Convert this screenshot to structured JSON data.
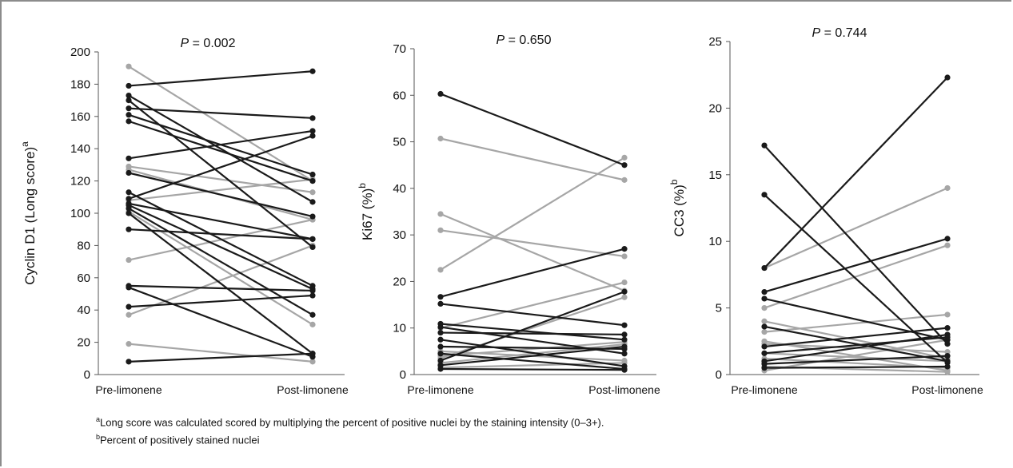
{
  "chart_data": [
    {
      "type": "line",
      "title": "P = 0.002",
      "title_parts": {
        "p": "P",
        "rest": " = 0.002"
      },
      "ylabel": "Cyclin D1 (Long score)",
      "ylabel_sup": "a",
      "categories": [
        "Pre-limonene",
        "Post-limonene"
      ],
      "ylim": [
        0,
        200
      ],
      "yticks": [
        0,
        20,
        40,
        60,
        80,
        100,
        120,
        140,
        160,
        180,
        200
      ],
      "legend": "none",
      "grid": false,
      "colors": {
        "dark": "#1a1a1a",
        "gray": "#a6a6a6"
      },
      "series": [
        {
          "color": "dark",
          "values": [
            179,
            188
          ]
        },
        {
          "color": "dark",
          "values": [
            173,
            107
          ]
        },
        {
          "color": "dark",
          "values": [
            170,
            79
          ]
        },
        {
          "color": "dark",
          "values": [
            165,
            159
          ]
        },
        {
          "color": "dark",
          "values": [
            161,
            124
          ]
        },
        {
          "color": "dark",
          "values": [
            157,
            120
          ]
        },
        {
          "color": "dark",
          "values": [
            134,
            151
          ]
        },
        {
          "color": "dark",
          "values": [
            125,
            98
          ]
        },
        {
          "color": "dark",
          "values": [
            113,
            55
          ]
        },
        {
          "color": "dark",
          "values": [
            109,
            148
          ]
        },
        {
          "color": "dark",
          "values": [
            106,
            84
          ]
        },
        {
          "color": "dark",
          "values": [
            105,
            53
          ]
        },
        {
          "color": "dark",
          "values": [
            103,
            37
          ]
        },
        {
          "color": "dark",
          "values": [
            100,
            13
          ]
        },
        {
          "color": "dark",
          "values": [
            90,
            84
          ]
        },
        {
          "color": "dark",
          "values": [
            55,
            52
          ]
        },
        {
          "color": "dark",
          "values": [
            54,
            11
          ]
        },
        {
          "color": "dark",
          "values": [
            42,
            49
          ]
        },
        {
          "color": "dark",
          "values": [
            8,
            13
          ]
        },
        {
          "color": "gray",
          "values": [
            191,
            120
          ]
        },
        {
          "color": "gray",
          "values": [
            129,
            113
          ]
        },
        {
          "color": "gray",
          "values": [
            127,
            96
          ]
        },
        {
          "color": "gray",
          "values": [
            108,
            121
          ]
        },
        {
          "color": "gray",
          "values": [
            101,
            31
          ]
        },
        {
          "color": "gray",
          "values": [
            71,
            96
          ]
        },
        {
          "color": "gray",
          "values": [
            37,
            80
          ]
        },
        {
          "color": "gray",
          "values": [
            19,
            8
          ]
        }
      ]
    },
    {
      "type": "line",
      "title": "P = 0.650",
      "title_parts": {
        "p": "P",
        "rest": " = 0.650"
      },
      "ylabel": "Ki67 (%)",
      "ylabel_sup": "b",
      "categories": [
        "Pre-limonene",
        "Post-limonene"
      ],
      "ylim": [
        0,
        70
      ],
      "yticks": [
        0,
        10,
        20,
        30,
        40,
        50,
        60,
        70
      ],
      "legend": "none",
      "grid": false,
      "colors": {
        "dark": "#1a1a1a",
        "gray": "#a6a6a6"
      },
      "series": [
        {
          "color": "dark",
          "values": [
            60.3,
            45
          ]
        },
        {
          "color": "dark",
          "values": [
            16.7,
            27
          ]
        },
        {
          "color": "dark",
          "values": [
            15.2,
            10.6
          ]
        },
        {
          "color": "dark",
          "values": [
            10.9,
            7.5
          ]
        },
        {
          "color": "dark",
          "values": [
            10.2,
            4.5
          ]
        },
        {
          "color": "dark",
          "values": [
            9,
            8.6
          ]
        },
        {
          "color": "dark",
          "values": [
            7.5,
            1.8
          ]
        },
        {
          "color": "dark",
          "values": [
            6,
            5.5
          ]
        },
        {
          "color": "dark",
          "values": [
            4.5,
            1.2
          ]
        },
        {
          "color": "dark",
          "values": [
            3,
            17.8
          ]
        },
        {
          "color": "dark",
          "values": [
            2,
            6
          ]
        },
        {
          "color": "dark",
          "values": [
            1.2,
            1
          ]
        },
        {
          "color": "gray",
          "values": [
            50.7,
            41.8
          ]
        },
        {
          "color": "gray",
          "values": [
            34.5,
            18
          ]
        },
        {
          "color": "gray",
          "values": [
            31,
            25.4
          ]
        },
        {
          "color": "gray",
          "values": [
            22.5,
            46.6
          ]
        },
        {
          "color": "gray",
          "values": [
            10,
            19.8
          ]
        },
        {
          "color": "gray",
          "values": [
            5,
            3
          ]
        },
        {
          "color": "gray",
          "values": [
            4,
            7
          ]
        },
        {
          "color": "gray",
          "values": [
            3.5,
            16.6
          ]
        },
        {
          "color": "gray",
          "values": [
            2.5,
            6.5
          ]
        },
        {
          "color": "gray",
          "values": [
            1.5,
            2.5
          ]
        }
      ]
    },
    {
      "type": "line",
      "title": "P = 0.744",
      "title_parts": {
        "p": "P",
        "rest": " = 0.744"
      },
      "ylabel": "CC3 (%)",
      "ylabel_sup": "b",
      "categories": [
        "Pre-limonene",
        "Post-limonene"
      ],
      "ylim": [
        0,
        25
      ],
      "yticks": [
        0,
        5,
        10,
        15,
        20,
        25
      ],
      "legend": "none",
      "grid": false,
      "colors": {
        "dark": "#1a1a1a",
        "gray": "#a6a6a6"
      },
      "series": [
        {
          "color": "dark",
          "values": [
            17.2,
            2.3
          ]
        },
        {
          "color": "dark",
          "values": [
            13.5,
            0.9
          ]
        },
        {
          "color": "dark",
          "values": [
            8,
            22.3
          ]
        },
        {
          "color": "dark",
          "values": [
            6.2,
            10.2
          ]
        },
        {
          "color": "dark",
          "values": [
            5.7,
            2.6
          ]
        },
        {
          "color": "dark",
          "values": [
            3.6,
            1
          ]
        },
        {
          "color": "dark",
          "values": [
            2.1,
            3.5
          ]
        },
        {
          "color": "dark",
          "values": [
            1.6,
            2.8
          ]
        },
        {
          "color": "dark",
          "values": [
            1,
            3
          ]
        },
        {
          "color": "dark",
          "values": [
            0.8,
            1.4
          ]
        },
        {
          "color": "dark",
          "values": [
            0.5,
            0.6
          ]
        },
        {
          "color": "gray",
          "values": [
            8,
            14
          ]
        },
        {
          "color": "gray",
          "values": [
            5,
            9.7
          ]
        },
        {
          "color": "gray",
          "values": [
            4,
            1.2
          ]
        },
        {
          "color": "gray",
          "values": [
            3.2,
            4.5
          ]
        },
        {
          "color": "gray",
          "values": [
            2.5,
            0.3
          ]
        },
        {
          "color": "gray",
          "values": [
            2.3,
            1.7
          ]
        },
        {
          "color": "gray",
          "values": [
            1.6,
            1
          ]
        },
        {
          "color": "gray",
          "values": [
            1.2,
            0.5
          ]
        },
        {
          "color": "gray",
          "values": [
            0.6,
            0.2
          ]
        },
        {
          "color": "gray",
          "values": [
            0.3,
            2.6
          ]
        }
      ]
    }
  ],
  "footnotes": [
    {
      "marker": "a",
      "text": "Long score was calculated scored by multiplying the percent of positive nuclei by the staining intensity (0–3+)."
    },
    {
      "marker": "b",
      "text": "Percent of positively stained nuclei"
    }
  ]
}
